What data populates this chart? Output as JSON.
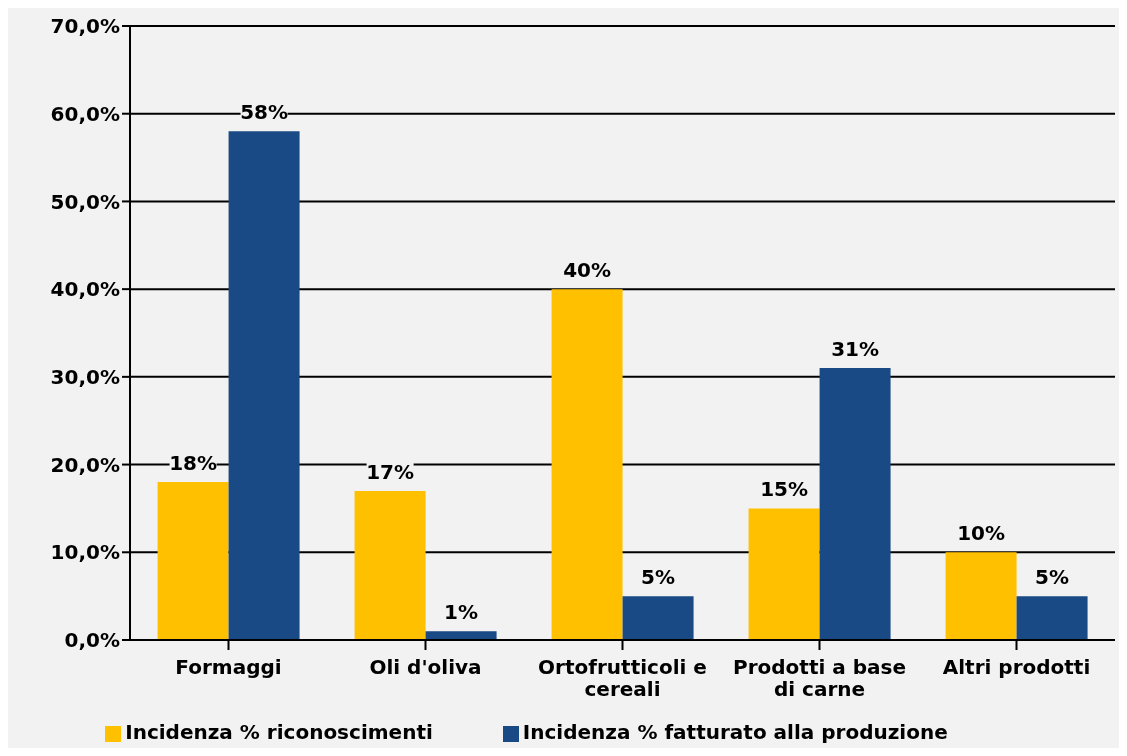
{
  "chart_data": {
    "type": "bar",
    "categories": [
      "Formaggi",
      "Oli d'oliva",
      "Ortofrutticoli e cereali",
      "Prodotti a base di carne",
      "Altri prodotti"
    ],
    "series": [
      {
        "name": "Incidenza % riconoscimenti",
        "color": "#ffc000",
        "values": [
          18,
          17,
          40,
          15,
          10
        ],
        "value_labels": [
          "18%",
          "17%",
          "40%",
          "15%",
          "10%"
        ]
      },
      {
        "name": "Incidenza % fatturato alla produzione",
        "color": "#1a4a85",
        "values": [
          58,
          1,
          5,
          31,
          5
        ],
        "value_labels": [
          "58%",
          "1%",
          "5%",
          "31%",
          "5%"
        ]
      }
    ],
    "ylim": [
      0,
      70
    ],
    "yticks": [
      {
        "value": 0,
        "label": "0,0%"
      },
      {
        "value": 10,
        "label": "10,0%"
      },
      {
        "value": 20,
        "label": "20,0%"
      },
      {
        "value": 30,
        "label": "30,0%"
      },
      {
        "value": 40,
        "label": "40,0%"
      },
      {
        "value": 50,
        "label": "50,0%"
      },
      {
        "value": 60,
        "label": "60,0%"
      },
      {
        "value": 70,
        "label": "70,0%"
      }
    ],
    "grid": "y",
    "legend": "bottom"
  }
}
